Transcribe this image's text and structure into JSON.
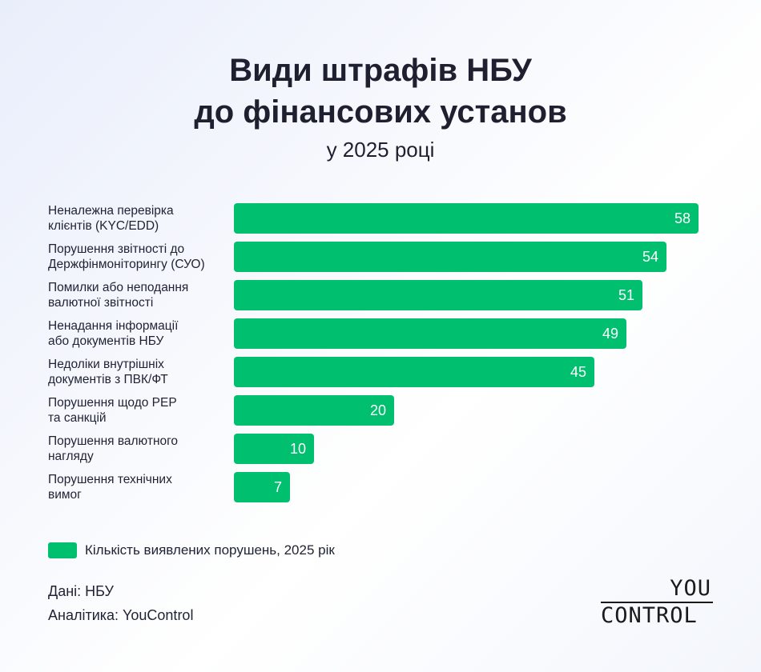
{
  "header": {
    "title_line1": "Види штрафів НБУ",
    "title_line2": "до фінансових установ",
    "subtitle": "у 2025 році"
  },
  "chart_data": {
    "type": "bar",
    "orientation": "horizontal",
    "categories": [
      [
        "Неналежна перевірка",
        "клієнтів (KYC/EDD)"
      ],
      [
        "Порушення звітності до",
        "Держфінмоніторингу (СУО)"
      ],
      [
        "Помилки або неподання",
        "валютної звітності"
      ],
      [
        "Ненадання інформації",
        "або документів НБУ"
      ],
      [
        "Недоліки внутрішніх",
        "документів з ПВК/ФТ"
      ],
      [
        "Порушення щодо РЕР",
        "та санкцій"
      ],
      [
        "Порушення валютного",
        "нагляду"
      ],
      [
        "Порушення технічних",
        "вимог"
      ]
    ],
    "series": [
      {
        "name": "Кількість виявлених порушень, 2025 рік",
        "values": [
          58,
          54,
          51,
          49,
          45,
          20,
          10,
          7
        ]
      }
    ],
    "xlim": [
      0,
      58
    ],
    "grid": false,
    "legend": "bottom-left",
    "colors": {
      "bar": "#00bf6f",
      "bar_label": "#ffffff"
    }
  },
  "footer": {
    "source": "Дані: НБУ",
    "analytics": "Аналітика: YouControl",
    "logo_top": "YOU",
    "logo_bottom": "CONTROL"
  }
}
